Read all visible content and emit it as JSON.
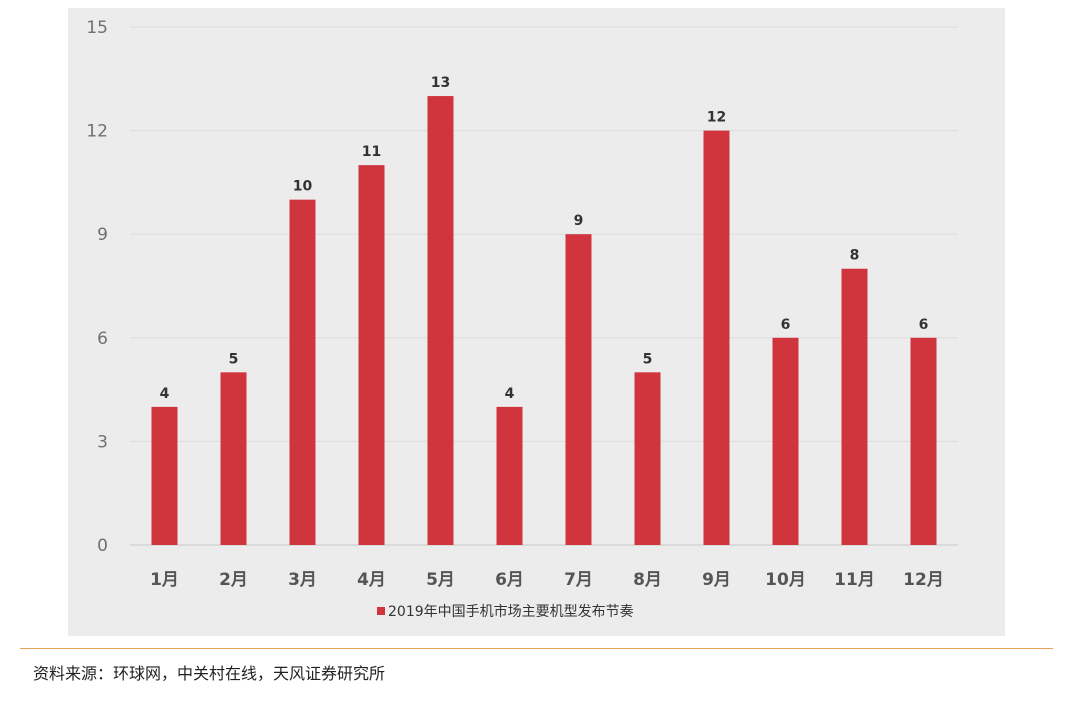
{
  "chart_data": {
    "type": "bar",
    "categories": [
      "1月",
      "2月",
      "3月",
      "4月",
      "5月",
      "6月",
      "7月",
      "8月",
      "9月",
      "10月",
      "11月",
      "12月"
    ],
    "series": [
      {
        "name": "2019年中国手机市场主要机型发布节奏",
        "values": [
          4,
          5,
          10,
          11,
          13,
          4,
          9,
          5,
          12,
          6,
          8,
          6
        ]
      }
    ],
    "ylim": [
      0,
      15
    ],
    "yticks": [
      0,
      3,
      6,
      9,
      12,
      15
    ],
    "grid": true,
    "legend": "bottom",
    "bar_color": "#d0343c",
    "data_labels": true
  },
  "source": "资料来源：环球网，中关村在线，天风证券研究所"
}
